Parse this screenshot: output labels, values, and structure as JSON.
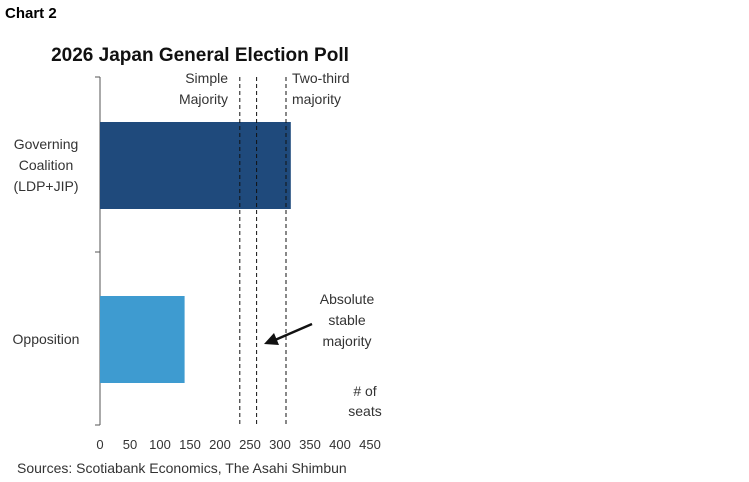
{
  "header": {
    "chart_number": "Chart 2"
  },
  "chart_data": {
    "type": "bar",
    "orientation": "horizontal",
    "title": "2026 Japan General Election Poll",
    "categories": [
      [
        "Governing",
        "Coalition",
        "(LDP+JIP)"
      ],
      [
        "Opposition"
      ]
    ],
    "values": [
      318,
      141
    ],
    "colors": [
      "#1f4a7c",
      "#3e9bd0"
    ],
    "xlabel": [
      "# of",
      "seats"
    ],
    "xlim": [
      0,
      450
    ],
    "xticks": [
      0,
      50,
      100,
      150,
      200,
      250,
      300,
      350,
      400,
      450
    ],
    "reference_lines": [
      {
        "value": 233,
        "label": [
          "Simple",
          "Majority"
        ]
      },
      {
        "value": 261,
        "label": [
          "Absolute",
          "stable",
          "majority"
        ]
      },
      {
        "value": 310,
        "label": [
          "Two-third",
          "majority"
        ]
      }
    ],
    "grid": false,
    "source": "Sources: Scotiabank Economics, The Asahi Shimbun"
  }
}
